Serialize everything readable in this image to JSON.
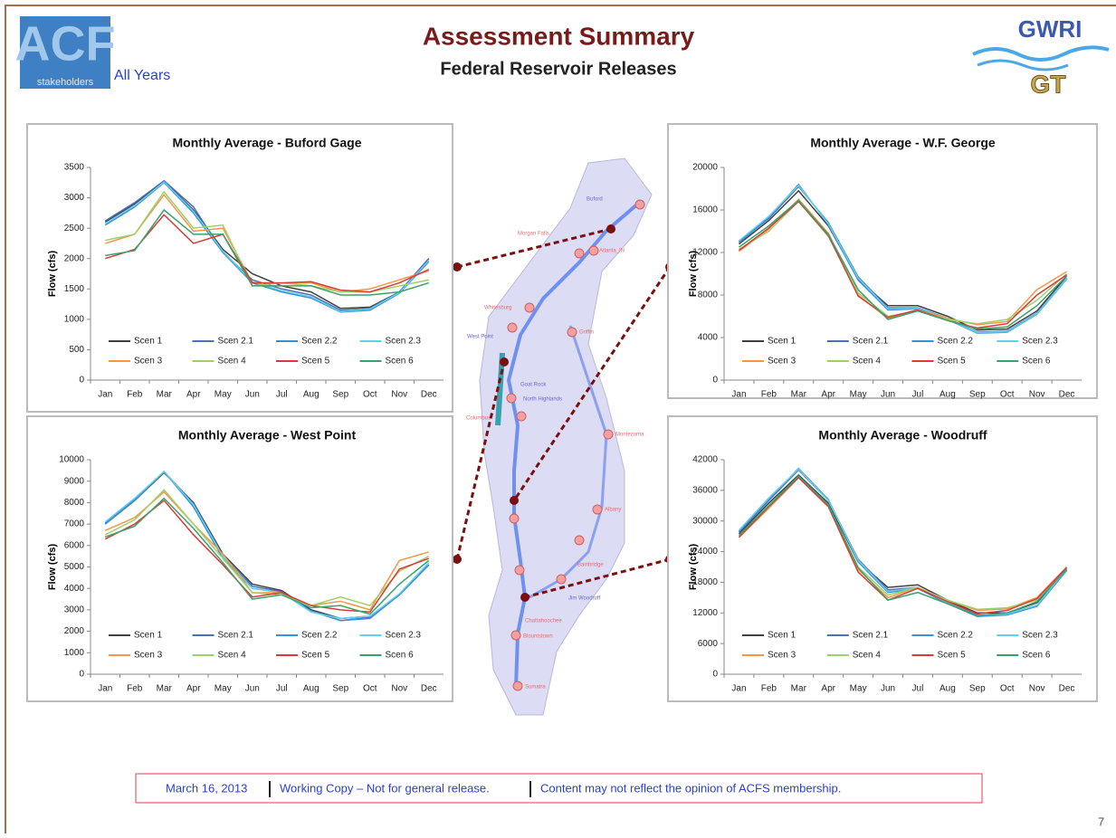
{
  "header": {
    "logo_left": "ACF",
    "logo_left_sub": "stakeholders",
    "scope": "All Years",
    "title": "Assessment Summary",
    "subtitle": "Federal Reservoir Releases",
    "logo_right": "GWRI",
    "logo_right_sub": "GT"
  },
  "chart_data": [
    {
      "type": "line",
      "title": "Monthly Average - Buford Gage",
      "y_label": "Flow (cfs)",
      "categories": [
        "Jan",
        "Feb",
        "Mar",
        "Apr",
        "May",
        "Jun",
        "Jul",
        "Aug",
        "Sep",
        "Oct",
        "Nov",
        "Dec"
      ],
      "ylim": [
        0,
        3500
      ],
      "yticks": [
        0,
        500,
        1000,
        1500,
        2000,
        2500,
        3000,
        3500
      ],
      "series": [
        {
          "name": "Scen 1",
          "color": "#404040",
          "values": [
            2600,
            2900,
            3270,
            2800,
            2150,
            1750,
            1550,
            1450,
            1180,
            1200,
            1450,
            2000
          ]
        },
        {
          "name": "Scen 2.1",
          "color": "#4f6fb0",
          "values": [
            2620,
            2920,
            3280,
            2850,
            2100,
            1650,
            1500,
            1400,
            1150,
            1180,
            1450,
            2000
          ]
        },
        {
          "name": "Scen 2.2",
          "color": "#3a8fd6",
          "values": [
            2550,
            2850,
            3250,
            2750,
            2100,
            1600,
            1450,
            1350,
            1120,
            1150,
            1430,
            1950
          ]
        },
        {
          "name": "Scen 2.3",
          "color": "#5fd0f0",
          "values": [
            2580,
            2870,
            3260,
            2780,
            2120,
            1620,
            1470,
            1370,
            1130,
            1170,
            1440,
            1970
          ]
        },
        {
          "name": "Scen 3",
          "color": "#f79646",
          "values": [
            2250,
            2400,
            3050,
            2450,
            2500,
            1600,
            1600,
            1600,
            1450,
            1500,
            1650,
            1800
          ]
        },
        {
          "name": "Scen 4",
          "color": "#9bd16c",
          "values": [
            2300,
            2400,
            3100,
            2500,
            2550,
            1550,
            1600,
            1550,
            1450,
            1450,
            1550,
            1650
          ]
        },
        {
          "name": "Scen 5",
          "color": "#d93a3a",
          "values": [
            2000,
            2150,
            2720,
            2250,
            2400,
            1600,
            1600,
            1620,
            1480,
            1450,
            1600,
            1820
          ]
        },
        {
          "name": "Scen 6",
          "color": "#3aa36a",
          "values": [
            2050,
            2130,
            2800,
            2400,
            2400,
            1550,
            1550,
            1550,
            1400,
            1400,
            1450,
            1600
          ]
        }
      ]
    },
    {
      "type": "line",
      "title": "Monthly Average - W.F. George",
      "y_label": "Flow (cfs)",
      "categories": [
        "Jan",
        "Feb",
        "Mar",
        "Apr",
        "May",
        "Jun",
        "Jul",
        "Aug",
        "Sep",
        "Oct",
        "Nov",
        "Dec"
      ],
      "ylim": [
        0,
        20000
      ],
      "yticks": [
        0,
        4000,
        8000,
        12000,
        16000,
        20000
      ],
      "series": [
        {
          "name": "Scen 1",
          "color": "#404040",
          "values": [
            12800,
            15000,
            17800,
            14500,
            9500,
            7000,
            7000,
            6000,
            4700,
            4800,
            6500,
            9800
          ]
        },
        {
          "name": "Scen 2.1",
          "color": "#4f6fb0",
          "values": [
            13000,
            15200,
            18200,
            14800,
            9700,
            6800,
            6800,
            5800,
            4500,
            4600,
            6300,
            9600
          ]
        },
        {
          "name": "Scen 2.2",
          "color": "#3a8fd6",
          "values": [
            12900,
            15300,
            18400,
            14600,
            9400,
            6600,
            6700,
            5700,
            4400,
            4500,
            6200,
            9500
          ]
        },
        {
          "name": "Scen 2.3",
          "color": "#5fd0f0",
          "values": [
            13100,
            15400,
            18300,
            14700,
            9600,
            6700,
            6750,
            5750,
            4450,
            4550,
            6250,
            9550
          ]
        },
        {
          "name": "Scen 3",
          "color": "#f79646",
          "values": [
            12100,
            14200,
            17000,
            13800,
            8000,
            5800,
            6600,
            5800,
            5200,
            5500,
            8500,
            10200
          ]
        },
        {
          "name": "Scen 4",
          "color": "#9bd16c",
          "values": [
            12300,
            14000,
            16800,
            13500,
            8200,
            6000,
            6500,
            5700,
            5300,
            5700,
            7500,
            10000
          ]
        },
        {
          "name": "Scen 5",
          "color": "#d93a3a",
          "values": [
            12200,
            14300,
            16800,
            13600,
            7900,
            5900,
            6600,
            5600,
            4900,
            5300,
            8000,
            9900
          ]
        },
        {
          "name": "Scen 6",
          "color": "#3aa36a",
          "values": [
            12500,
            14500,
            16900,
            13700,
            8500,
            5700,
            6500,
            5600,
            4800,
            5000,
            7000,
            9800
          ]
        }
      ]
    },
    {
      "type": "line",
      "title": "Monthly Average - West Point",
      "y_label": "Flow (cfs)",
      "categories": [
        "Jan",
        "Feb",
        "Mar",
        "Apr",
        "May",
        "Jun",
        "Jul",
        "Aug",
        "Sep",
        "Oct",
        "Nov",
        "Dec"
      ],
      "ylim": [
        0,
        10000
      ],
      "yticks": [
        0,
        1000,
        2000,
        3000,
        4000,
        5000,
        6000,
        7000,
        8000,
        9000,
        10000
      ],
      "series": [
        {
          "name": "Scen 1",
          "color": "#404040",
          "values": [
            7000,
            8100,
            9400,
            8000,
            5600,
            4200,
            3900,
            3000,
            2600,
            2700,
            3700,
            5100
          ]
        },
        {
          "name": "Scen 2.1",
          "color": "#4f6fb0",
          "values": [
            7050,
            8150,
            9450,
            7950,
            5500,
            4100,
            3850,
            2950,
            2500,
            2650,
            3700,
            5100
          ]
        },
        {
          "name": "Scen 2.2",
          "color": "#3a8fd6",
          "values": [
            7000,
            8100,
            9450,
            7800,
            5400,
            4000,
            3800,
            2950,
            2500,
            2600,
            3700,
            5100
          ]
        },
        {
          "name": "Scen 2.3",
          "color": "#5fd0f0",
          "values": [
            7100,
            8200,
            9450,
            7900,
            5500,
            4000,
            3800,
            2900,
            2600,
            2700,
            3750,
            5200
          ]
        },
        {
          "name": "Scen 3",
          "color": "#f79646",
          "values": [
            6700,
            7300,
            8500,
            7000,
            5600,
            3800,
            3800,
            3200,
            3400,
            3000,
            5300,
            5700
          ]
        },
        {
          "name": "Scen 4",
          "color": "#9bd16c",
          "values": [
            6500,
            7200,
            8600,
            7000,
            5400,
            3800,
            3700,
            3200,
            3600,
            3200,
            4800,
            5500
          ]
        },
        {
          "name": "Scen 5",
          "color": "#d93a3a",
          "values": [
            6300,
            7000,
            8100,
            6500,
            5100,
            3600,
            3800,
            3200,
            3000,
            2900,
            4900,
            5400
          ]
        },
        {
          "name": "Scen 6",
          "color": "#3aa36a",
          "values": [
            6400,
            6900,
            8200,
            6800,
            5200,
            3500,
            3700,
            3100,
            3200,
            2800,
            4200,
            5300
          ]
        }
      ]
    },
    {
      "type": "line",
      "title": "Monthly Average - Woodruff",
      "y_label": "Flow (cfs)",
      "categories": [
        "Jan",
        "Feb",
        "Mar",
        "Apr",
        "May",
        "Jun",
        "Jul",
        "Aug",
        "Sep",
        "Oct",
        "Nov",
        "Dec"
      ],
      "ylim": [
        0,
        42000
      ],
      "yticks": [
        0,
        6000,
        12000,
        18000,
        24000,
        30000,
        36000,
        42000
      ],
      "series": [
        {
          "name": "Scen 1",
          "color": "#404040",
          "values": [
            27500,
            33500,
            39000,
            33500,
            22000,
            17000,
            17500,
            14500,
            12000,
            12000,
            14000,
            20500
          ]
        },
        {
          "name": "Scen 2.1",
          "color": "#4f6fb0",
          "values": [
            27800,
            34000,
            40000,
            34000,
            22500,
            16500,
            17000,
            14000,
            11500,
            11800,
            13500,
            20500
          ]
        },
        {
          "name": "Scen 2.2",
          "color": "#3a8fd6",
          "values": [
            28000,
            34200,
            40300,
            34200,
            22000,
            16000,
            16800,
            13800,
            11300,
            11600,
            13300,
            20300
          ]
        },
        {
          "name": "Scen 2.3",
          "color": "#5fd0f0",
          "values": [
            28200,
            34500,
            40200,
            34000,
            22300,
            16200,
            17000,
            14000,
            11500,
            11800,
            13500,
            20600
          ]
        },
        {
          "name": "Scen 3",
          "color": "#f79646",
          "values": [
            26800,
            32500,
            38500,
            33000,
            20500,
            15000,
            17000,
            14500,
            12500,
            12800,
            15000,
            21000
          ]
        },
        {
          "name": "Scen 4",
          "color": "#9bd16c",
          "values": [
            27000,
            33000,
            38700,
            33000,
            21000,
            15500,
            17000,
            14500,
            12700,
            13000,
            14500,
            20800
          ]
        },
        {
          "name": "Scen 5",
          "color": "#d93a3a",
          "values": [
            26800,
            32800,
            38500,
            32800,
            20000,
            14500,
            16800,
            14200,
            11800,
            12500,
            14800,
            20900
          ]
        },
        {
          "name": "Scen 6",
          "color": "#3aa36a",
          "values": [
            27200,
            33000,
            38800,
            33200,
            20800,
            14500,
            16000,
            13800,
            11500,
            12000,
            14200,
            20600
          ]
        }
      ]
    }
  ],
  "map": {
    "labels": [
      "Buford",
      "Morgan Falls",
      "Atlanta_IN",
      "Whitesburg",
      "West Point",
      "Griffin",
      "Goat Rock",
      "North Highlands",
      "Columbus",
      "Montezuma",
      "Albany",
      "Bainbridge",
      "Jim Woodruff",
      "Chattahoochee",
      "Blountstown",
      "Sumatra"
    ]
  },
  "footer": {
    "date": "March 16, 2013",
    "status": "Working Copy – Not for general release.",
    "disclaimer": "Content may not reflect the opinion of ACFS membership."
  },
  "page_number": "7"
}
